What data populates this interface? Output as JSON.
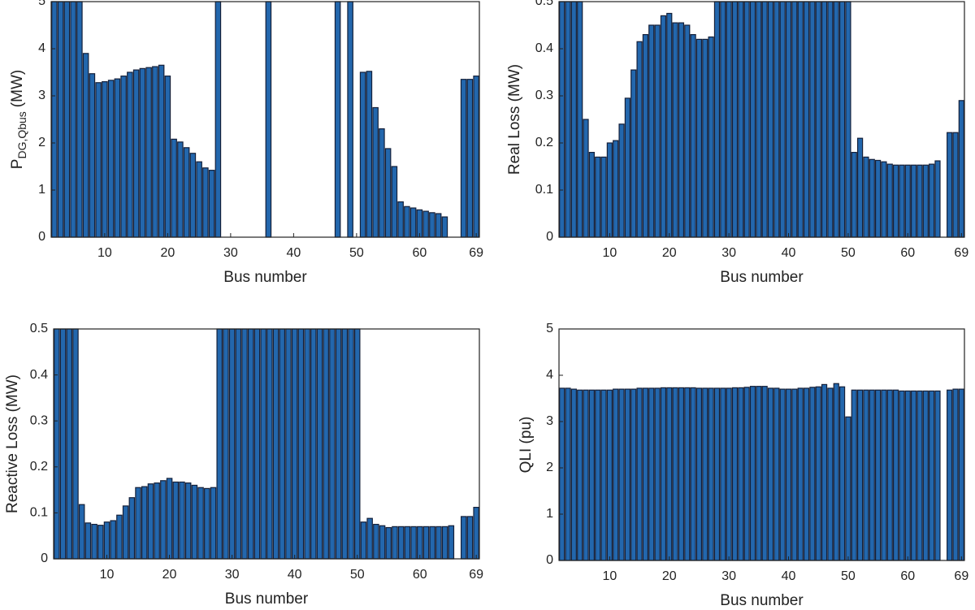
{
  "chart_data": [
    {
      "type": "bar",
      "ylabel": "P",
      "ylabel_subscript": "DG,Qbus",
      "ylabel_unit": "(MW)",
      "xlabel": "Bus number",
      "color": "#2367ad",
      "x": [
        2,
        3,
        4,
        5,
        6,
        7,
        8,
        9,
        10,
        11,
        12,
        13,
        14,
        15,
        16,
        17,
        18,
        19,
        20,
        21,
        22,
        23,
        24,
        25,
        26,
        27,
        28,
        29,
        30,
        31,
        32,
        33,
        34,
        35,
        36,
        37,
        38,
        39,
        40,
        41,
        42,
        43,
        44,
        45,
        46,
        47,
        48,
        49,
        50,
        51,
        52,
        53,
        54,
        55,
        56,
        57,
        58,
        59,
        60,
        61,
        62,
        63,
        64,
        65,
        66,
        67,
        68,
        69
      ],
      "values": [
        5,
        5,
        5,
        5,
        5,
        3.9,
        3.47,
        3.28,
        3.3,
        3.33,
        3.36,
        3.42,
        3.5,
        3.55,
        3.58,
        3.6,
        3.62,
        3.65,
        3.42,
        2.08,
        2.02,
        1.9,
        1.78,
        1.6,
        1.47,
        1.42,
        5,
        0,
        0,
        0,
        0,
        0,
        0,
        0,
        5,
        0,
        0,
        0,
        0,
        0,
        0,
        0,
        0,
        0,
        0,
        5,
        0,
        5,
        0,
        3.5,
        3.52,
        2.75,
        2.3,
        1.88,
        1.5,
        0.75,
        0.65,
        0.62,
        0.58,
        0.55,
        0.52,
        0.5,
        0.43,
        0,
        0,
        3.35,
        3.35,
        3.42
      ],
      "xlim": [
        1.5,
        69.5
      ],
      "xticks": [
        10,
        20,
        30,
        40,
        50,
        60,
        69
      ],
      "ylim": [
        0,
        5
      ],
      "yticks": [
        0,
        1,
        2,
        3,
        4,
        5
      ]
    },
    {
      "type": "bar",
      "ylabel": "Real Loss (MW)",
      "xlabel": "Bus number",
      "color": "#2367ad",
      "x": [
        2,
        3,
        4,
        5,
        6,
        7,
        8,
        9,
        10,
        11,
        12,
        13,
        14,
        15,
        16,
        17,
        18,
        19,
        20,
        21,
        22,
        23,
        24,
        25,
        26,
        27,
        28,
        29,
        30,
        31,
        32,
        33,
        34,
        35,
        36,
        37,
        38,
        39,
        40,
        41,
        42,
        43,
        44,
        45,
        46,
        47,
        48,
        49,
        50,
        51,
        52,
        53,
        54,
        55,
        56,
        57,
        58,
        59,
        60,
        61,
        62,
        63,
        64,
        65,
        66,
        67,
        68,
        69
      ],
      "values": [
        0.5,
        0.5,
        0.5,
        0.5,
        0.25,
        0.18,
        0.17,
        0.17,
        0.2,
        0.205,
        0.24,
        0.295,
        0.355,
        0.415,
        0.43,
        0.45,
        0.45,
        0.47,
        0.475,
        0.455,
        0.455,
        0.45,
        0.43,
        0.42,
        0.42,
        0.425,
        0.5,
        0.5,
        0.5,
        0.5,
        0.5,
        0.5,
        0.5,
        0.5,
        0.5,
        0.5,
        0.5,
        0.5,
        0.5,
        0.5,
        0.5,
        0.5,
        0.5,
        0.5,
        0.5,
        0.5,
        0.5,
        0.5,
        0.5,
        0.18,
        0.21,
        0.17,
        0.165,
        0.163,
        0.16,
        0.155,
        0.153,
        0.153,
        0.153,
        0.153,
        0.153,
        0.153,
        0.155,
        0.162,
        0,
        0.222,
        0.222,
        0.29
      ],
      "xlim": [
        1.5,
        69.5
      ],
      "xticks": [
        10,
        20,
        30,
        40,
        50,
        60,
        69
      ],
      "ylim": [
        0,
        0.5
      ],
      "yticks": [
        0,
        0.1,
        0.2,
        0.3,
        0.4,
        0.5
      ]
    },
    {
      "type": "bar",
      "ylabel": "Reactive Loss (MW)",
      "xlabel": "Bus number",
      "color": "#2367ad",
      "x": [
        2,
        3,
        4,
        5,
        6,
        7,
        8,
        9,
        10,
        11,
        12,
        13,
        14,
        15,
        16,
        17,
        18,
        19,
        20,
        21,
        22,
        23,
        24,
        25,
        26,
        27,
        28,
        29,
        30,
        31,
        32,
        33,
        34,
        35,
        36,
        37,
        38,
        39,
        40,
        41,
        42,
        43,
        44,
        45,
        46,
        47,
        48,
        49,
        50,
        51,
        52,
        53,
        54,
        55,
        56,
        57,
        58,
        59,
        60,
        61,
        62,
        63,
        64,
        65,
        66,
        67,
        68,
        69
      ],
      "values": [
        0.5,
        0.5,
        0.5,
        0.5,
        0.118,
        0.078,
        0.075,
        0.073,
        0.08,
        0.083,
        0.095,
        0.115,
        0.133,
        0.155,
        0.157,
        0.163,
        0.165,
        0.17,
        0.175,
        0.167,
        0.167,
        0.165,
        0.16,
        0.155,
        0.153,
        0.155,
        0.5,
        0.5,
        0.5,
        0.5,
        0.5,
        0.5,
        0.5,
        0.5,
        0.5,
        0.5,
        0.5,
        0.5,
        0.5,
        0.5,
        0.5,
        0.5,
        0.5,
        0.5,
        0.5,
        0.5,
        0.5,
        0.5,
        0.5,
        0.08,
        0.088,
        0.075,
        0.072,
        0.068,
        0.07,
        0.07,
        0.07,
        0.07,
        0.07,
        0.07,
        0.07,
        0.07,
        0.07,
        0.072,
        0,
        0.092,
        0.092,
        0.112
      ],
      "xlim": [
        1.5,
        69.5
      ],
      "xticks": [
        10,
        20,
        30,
        40,
        50,
        60,
        69
      ],
      "ylim": [
        0,
        0.5
      ],
      "yticks": [
        0,
        0.1,
        0.2,
        0.3,
        0.4,
        0.5
      ]
    },
    {
      "type": "bar",
      "ylabel": "QLI (pu)",
      "xlabel": "Bus number",
      "color": "#2367ad",
      "x": [
        2,
        3,
        4,
        5,
        6,
        7,
        8,
        9,
        10,
        11,
        12,
        13,
        14,
        15,
        16,
        17,
        18,
        19,
        20,
        21,
        22,
        23,
        24,
        25,
        26,
        27,
        28,
        29,
        30,
        31,
        32,
        33,
        34,
        35,
        36,
        37,
        38,
        39,
        40,
        41,
        42,
        43,
        44,
        45,
        46,
        47,
        48,
        49,
        50,
        51,
        52,
        53,
        54,
        55,
        56,
        57,
        58,
        59,
        60,
        61,
        62,
        63,
        64,
        65,
        66,
        67,
        68,
        69
      ],
      "values": [
        3.72,
        3.72,
        3.7,
        3.68,
        3.68,
        3.68,
        3.68,
        3.68,
        3.68,
        3.7,
        3.7,
        3.7,
        3.7,
        3.72,
        3.72,
        3.72,
        3.72,
        3.73,
        3.73,
        3.73,
        3.73,
        3.73,
        3.73,
        3.72,
        3.72,
        3.72,
        3.72,
        3.72,
        3.72,
        3.73,
        3.73,
        3.74,
        3.76,
        3.76,
        3.76,
        3.72,
        3.72,
        3.7,
        3.7,
        3.7,
        3.72,
        3.72,
        3.74,
        3.75,
        3.8,
        3.72,
        3.82,
        3.75,
        3.1,
        3.68,
        3.68,
        3.68,
        3.68,
        3.68,
        3.68,
        3.68,
        3.68,
        3.66,
        3.66,
        3.66,
        3.66,
        3.66,
        3.66,
        3.66,
        0,
        3.68,
        3.7,
        3.7
      ],
      "xlim": [
        1.5,
        69.5
      ],
      "xticks": [
        10,
        20,
        30,
        40,
        50,
        60,
        69
      ],
      "ylim": [
        0,
        5
      ],
      "yticks": [
        0,
        1,
        2,
        3,
        4,
        5
      ]
    }
  ]
}
